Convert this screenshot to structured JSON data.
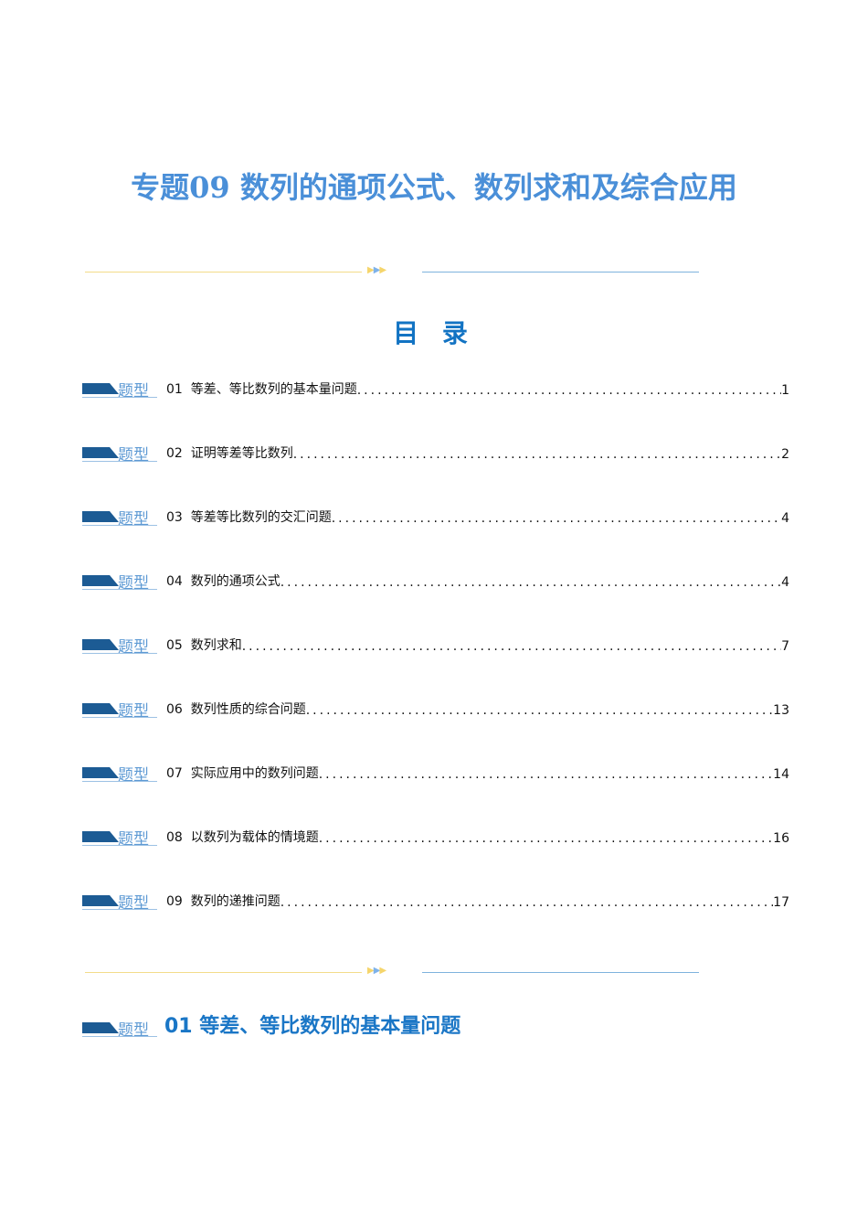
{
  "title": "专题09 数列的通项公式、数列求和及综合应用",
  "toc_heading": "目 录",
  "badge_label": "题型",
  "divider_arrows": "▶▶▶",
  "toc": [
    {
      "num": "01",
      "label": "等差、等比数列的基本量问题",
      "page": "1"
    },
    {
      "num": "02",
      "label": "证明等差等比数列",
      "page": "2"
    },
    {
      "num": "03",
      "label": "等差等比数列的交汇问题",
      "page": "4"
    },
    {
      "num": "04",
      "label": "数列的通项公式",
      "page": "4"
    },
    {
      "num": "05",
      "label": "数列求和",
      "page": "7"
    },
    {
      "num": "06",
      "label": "数列性质的综合问题",
      "page": "13"
    },
    {
      "num": "07",
      "label": "实际应用中的数列问题",
      "page": "14"
    },
    {
      "num": "08",
      "label": "以数列为载体的情境题",
      "page": "16"
    },
    {
      "num": "09",
      "label": "数列的递推问题",
      "page": "17"
    }
  ],
  "section_heading": "01 等差、等比数列的基本量问题"
}
